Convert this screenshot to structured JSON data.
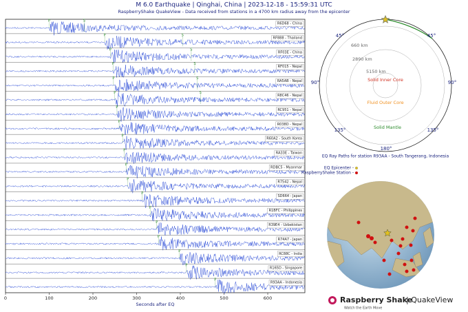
{
  "chart_data": {
    "type": "seismogram",
    "title": "M 6.0 Earthquake | Qinghai, China | 2023-12-18 - 15:59:31 UTC",
    "subtitle": "RaspberryShake QuakeView - Data received from stations in a 4700 km radius away from the epicenter",
    "xlabel": "Seconds after EQ",
    "xlim": [
      0,
      685
    ],
    "xticks": [
      0,
      100,
      200,
      300,
      400,
      500,
      600
    ],
    "p_label": "P",
    "s_label": "S",
    "trace_color": "#3050d8",
    "stations": [
      {
        "name": "R6D68 - China",
        "p": 100,
        "s": 180
      },
      {
        "name": "RF888 - Thailand",
        "p": 227,
        "s": 405
      },
      {
        "name": "RF03E - China",
        "p": 240,
        "s": 425
      },
      {
        "name": "RF015 - Nepal",
        "p": 246,
        "s": 433
      },
      {
        "name": "RA5AB - Nepal",
        "p": 247,
        "s": 439
      },
      {
        "name": "R8C46 - Nepal",
        "p": 250,
        "s": 446
      },
      {
        "name": "RC951 - Nepal",
        "p": 255,
        "s": null
      },
      {
        "name": "R038D - Nepal",
        "p": 260,
        "s": null
      },
      {
        "name": "R60A2 - South Korea",
        "p": 268,
        "s": null
      },
      {
        "name": "RA33E - Taiwan",
        "p": 272,
        "s": null
      },
      {
        "name": "RDBC5 - Myanmar",
        "p": 276,
        "s": null
      },
      {
        "name": "R7542 - Nepal",
        "p": 280,
        "s": null
      },
      {
        "name": "SD664 - Japan",
        "p": 313,
        "s": null
      },
      {
        "name": "R1BFC - Philippines",
        "p": 331,
        "s": null
      },
      {
        "name": "R39E4 - Uzbekistan",
        "p": 346,
        "s": null
      },
      {
        "name": "R74A7 - Japan",
        "p": 350,
        "s": null
      },
      {
        "name": "RC88C - India",
        "p": 398,
        "s": null
      },
      {
        "name": "R165D - Singapore",
        "p": 414,
        "s": null
      },
      {
        "name": "R93AA - Indonesia",
        "p": 480,
        "s": null
      }
    ]
  },
  "ray_diagram": {
    "depths": [
      "660 km",
      "2890 km",
      "5150 km"
    ],
    "inner_core": "Solid Inner Core",
    "outer_core": "Fluid Outer Core",
    "mantle": "Solid Mantle",
    "angles": [
      "45°",
      "45°",
      "90°",
      "90°",
      "135°",
      "135°",
      "180°"
    ],
    "caption": "EQ Ray Paths for station R93AA - South Tangerang, Indonesia"
  },
  "map_legend": {
    "epicenter": "EQ Epicenter -",
    "station": "RaspberryShake Station -"
  },
  "logo": {
    "brand": "Raspberry Shake",
    "product": "| QuakeView",
    "tagline": "Watch the Earth Move"
  }
}
